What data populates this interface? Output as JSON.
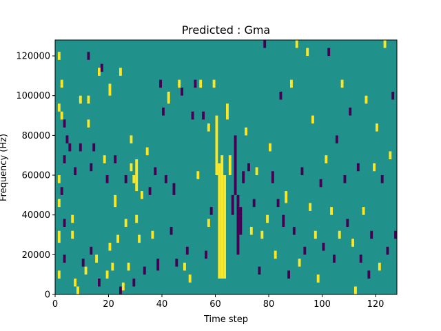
{
  "chart_data": {
    "type": "heatmap",
    "title": "Predicted : Gma",
    "xlabel": "Time step",
    "ylabel": "Frequency (Hz)",
    "xlim": [
      0,
      128
    ],
    "ylim": [
      0,
      128000
    ],
    "x_ticks": [
      0,
      20,
      40,
      60,
      80,
      100,
      120
    ],
    "y_ticks": [
      0,
      20000,
      40000,
      60000,
      80000,
      100000,
      120000
    ],
    "x_tick_labels": [
      "0",
      "20",
      "40",
      "60",
      "80",
      "100",
      "120"
    ],
    "y_tick_labels": [
      "0",
      "20000",
      "40000",
      "60000",
      "80000",
      "100000",
      "120000"
    ],
    "grid": false,
    "legend": "none",
    "colors": {
      "background": "#21918c",
      "high": "#fde725",
      "low": "#440154"
    },
    "levels": [
      "low",
      "background",
      "high"
    ],
    "cells": [
      {
        "t": 1,
        "f0": 118000,
        "f1": 122000,
        "v": "high"
      },
      {
        "t": 2,
        "f0": 104000,
        "f1": 108000,
        "v": "high"
      },
      {
        "t": 1,
        "f0": 92000,
        "f1": 96000,
        "v": "high"
      },
      {
        "t": 2,
        "f0": 88000,
        "f1": 92000,
        "v": "high"
      },
      {
        "t": 3,
        "f0": 84000,
        "f1": 88000,
        "v": "low"
      },
      {
        "t": 4,
        "f0": 76000,
        "f1": 80000,
        "v": "low"
      },
      {
        "t": 5,
        "f0": 72000,
        "f1": 76000,
        "v": "low"
      },
      {
        "t": 3,
        "f0": 66000,
        "f1": 70000,
        "v": "low"
      },
      {
        "t": 1,
        "f0": 56000,
        "f1": 60000,
        "v": "high"
      },
      {
        "t": 2,
        "f0": 50000,
        "f1": 54000,
        "v": "low"
      },
      {
        "t": 1,
        "f0": 44000,
        "f1": 48000,
        "v": "high"
      },
      {
        "t": 3,
        "f0": 34000,
        "f1": 38000,
        "v": "low"
      },
      {
        "t": 1,
        "f0": 26000,
        "f1": 32000,
        "v": "high"
      },
      {
        "t": 3,
        "f0": 16000,
        "f1": 20000,
        "v": "low"
      },
      {
        "t": 1,
        "f0": 8000,
        "f1": 12000,
        "v": "high"
      },
      {
        "t": 7,
        "f0": 4000,
        "f1": 8000,
        "v": "high"
      },
      {
        "t": 8,
        "f0": 0,
        "f1": 4000,
        "v": "high"
      },
      {
        "t": 6,
        "f0": 28000,
        "f1": 32000,
        "v": "high"
      },
      {
        "t": 6,
        "f0": 36000,
        "f1": 40000,
        "v": "high"
      },
      {
        "t": 7,
        "f0": 60000,
        "f1": 64000,
        "v": "low"
      },
      {
        "t": 9,
        "f0": 72000,
        "f1": 76000,
        "v": "low"
      },
      {
        "t": 9,
        "f0": 96000,
        "f1": 100000,
        "v": "high"
      },
      {
        "t": 12,
        "f0": 118000,
        "f1": 122000,
        "v": "low"
      },
      {
        "t": 12,
        "f0": 96000,
        "f1": 100000,
        "v": "high"
      },
      {
        "t": 12,
        "f0": 84000,
        "f1": 88000,
        "v": "high"
      },
      {
        "t": 13,
        "f0": 62000,
        "f1": 66000,
        "v": "low"
      },
      {
        "t": 10,
        "f0": 14000,
        "f1": 18000,
        "v": "low"
      },
      {
        "t": 11,
        "f0": 10000,
        "f1": 14000,
        "v": "high"
      },
      {
        "t": 13,
        "f0": 20000,
        "f1": 24000,
        "v": "low"
      },
      {
        "t": 14,
        "f0": 72000,
        "f1": 76000,
        "v": "low"
      },
      {
        "t": 15,
        "f0": 16000,
        "f1": 20000,
        "v": "high"
      },
      {
        "t": 16,
        "f0": 110000,
        "f1": 114000,
        "v": "high"
      },
      {
        "t": 16,
        "f0": 4000,
        "f1": 8000,
        "v": "low"
      },
      {
        "t": 17,
        "f0": 112000,
        "f1": 116000,
        "v": "low"
      },
      {
        "t": 18,
        "f0": 66000,
        "f1": 70000,
        "v": "high"
      },
      {
        "t": 19,
        "f0": 56000,
        "f1": 60000,
        "v": "low"
      },
      {
        "t": 19,
        "f0": 8000,
        "f1": 12000,
        "v": "high"
      },
      {
        "t": 20,
        "f0": 100000,
        "f1": 106000,
        "v": "high"
      },
      {
        "t": 20,
        "f0": 22000,
        "f1": 26000,
        "v": "high"
      },
      {
        "t": 21,
        "f0": 12000,
        "f1": 16000,
        "v": "high"
      },
      {
        "t": 22,
        "f0": 66000,
        "f1": 70000,
        "v": "low"
      },
      {
        "t": 22,
        "f0": 44000,
        "f1": 50000,
        "v": "high"
      },
      {
        "t": 23,
        "f0": 26000,
        "f1": 30000,
        "v": "high"
      },
      {
        "t": 24,
        "f0": 110000,
        "f1": 114000,
        "v": "high"
      },
      {
        "t": 24,
        "f0": 0,
        "f1": 4000,
        "v": "low"
      },
      {
        "t": 25,
        "f0": 2000,
        "f1": 6000,
        "v": "high"
      },
      {
        "t": 26,
        "f0": 56000,
        "f1": 60000,
        "v": "low"
      },
      {
        "t": 26,
        "f0": 34000,
        "f1": 38000,
        "v": "high"
      },
      {
        "t": 27,
        "f0": 12000,
        "f1": 16000,
        "v": "high"
      },
      {
        "t": 28,
        "f0": 76000,
        "f1": 80000,
        "v": "high"
      },
      {
        "t": 28,
        "f0": 62000,
        "f1": 66000,
        "v": "high"
      },
      {
        "t": 29,
        "f0": 56000,
        "f1": 60000,
        "v": "high"
      },
      {
        "t": 29,
        "f0": 4000,
        "f1": 8000,
        "v": "low"
      },
      {
        "t": 30,
        "f0": 36000,
        "f1": 40000,
        "v": "high"
      },
      {
        "t": 30,
        "f0": 52000,
        "f1": 68000,
        "v": "high"
      },
      {
        "t": 31,
        "f0": 26000,
        "f1": 30000,
        "v": "high"
      },
      {
        "t": 32,
        "f0": 48000,
        "f1": 52000,
        "v": "high"
      },
      {
        "t": 33,
        "f0": 10000,
        "f1": 14000,
        "v": "low"
      },
      {
        "t": 34,
        "f0": 70000,
        "f1": 74000,
        "v": "high"
      },
      {
        "t": 35,
        "f0": 50000,
        "f1": 54000,
        "v": "low"
      },
      {
        "t": 36,
        "f0": 28000,
        "f1": 32000,
        "v": "high"
      },
      {
        "t": 37,
        "f0": 60000,
        "f1": 64000,
        "v": "low"
      },
      {
        "t": 38,
        "f0": 12000,
        "f1": 18000,
        "v": "low"
      },
      {
        "t": 39,
        "f0": 104000,
        "f1": 108000,
        "v": "low"
      },
      {
        "t": 40,
        "f0": 90000,
        "f1": 94000,
        "v": "low"
      },
      {
        "t": 41,
        "f0": 56000,
        "f1": 60000,
        "v": "low"
      },
      {
        "t": 42,
        "f0": 96000,
        "f1": 102000,
        "v": "high"
      },
      {
        "t": 43,
        "f0": 30000,
        "f1": 34000,
        "v": "low"
      },
      {
        "t": 44,
        "f0": 50000,
        "f1": 56000,
        "v": "low"
      },
      {
        "t": 45,
        "f0": 14000,
        "f1": 18000,
        "v": "low"
      },
      {
        "t": 46,
        "f0": 104000,
        "f1": 108000,
        "v": "high"
      },
      {
        "t": 47,
        "f0": 100000,
        "f1": 104000,
        "v": "low"
      },
      {
        "t": 48,
        "f0": 12000,
        "f1": 16000,
        "v": "high"
      },
      {
        "t": 49,
        "f0": 20000,
        "f1": 24000,
        "v": "low"
      },
      {
        "t": 50,
        "f0": 6000,
        "f1": 10000,
        "v": "high"
      },
      {
        "t": 51,
        "f0": 88000,
        "f1": 92000,
        "v": "low"
      },
      {
        "t": 52,
        "f0": 104000,
        "f1": 108000,
        "v": "low"
      },
      {
        "t": 53,
        "f0": 58000,
        "f1": 62000,
        "v": "high"
      },
      {
        "t": 54,
        "f0": 104000,
        "f1": 108000,
        "v": "high"
      },
      {
        "t": 55,
        "f0": 88000,
        "f1": 92000,
        "v": "low"
      },
      {
        "t": 56,
        "f0": 18000,
        "f1": 22000,
        "v": "low"
      },
      {
        "t": 57,
        "f0": 34000,
        "f1": 38000,
        "v": "high"
      },
      {
        "t": 57,
        "f0": 82000,
        "f1": 86000,
        "v": "high"
      },
      {
        "t": 58,
        "f0": 40000,
        "f1": 44000,
        "v": "low"
      },
      {
        "t": 59,
        "f0": 104000,
        "f1": 108000,
        "v": "high"
      },
      {
        "t": 60,
        "f0": 60000,
        "f1": 90000,
        "v": "high"
      },
      {
        "t": 61,
        "f0": 8000,
        "f1": 66000,
        "v": "high"
      },
      {
        "t": 62,
        "f0": 8000,
        "f1": 70000,
        "v": "high"
      },
      {
        "t": 63,
        "f0": 8000,
        "f1": 60000,
        "v": "high"
      },
      {
        "t": 64,
        "f0": 88000,
        "f1": 96000,
        "v": "high"
      },
      {
        "t": 65,
        "f0": 60000,
        "f1": 70000,
        "v": "high"
      },
      {
        "t": 66,
        "f0": 40000,
        "f1": 50000,
        "v": "low"
      },
      {
        "t": 67,
        "f0": 50000,
        "f1": 80000,
        "v": "low"
      },
      {
        "t": 68,
        "f0": 20000,
        "f1": 50000,
        "v": "low"
      },
      {
        "t": 69,
        "f0": 30000,
        "f1": 44000,
        "v": "low"
      },
      {
        "t": 70,
        "f0": 56000,
        "f1": 62000,
        "v": "low"
      },
      {
        "t": 71,
        "f0": 80000,
        "f1": 84000,
        "v": "high"
      },
      {
        "t": 72,
        "f0": 62000,
        "f1": 66000,
        "v": "low"
      },
      {
        "t": 73,
        "f0": 30000,
        "f1": 34000,
        "v": "high"
      },
      {
        "t": 74,
        "f0": 44000,
        "f1": 48000,
        "v": "low"
      },
      {
        "t": 75,
        "f0": 60000,
        "f1": 64000,
        "v": "high"
      },
      {
        "t": 76,
        "f0": 10000,
        "f1": 14000,
        "v": "low"
      },
      {
        "t": 77,
        "f0": 28000,
        "f1": 32000,
        "v": "high"
      },
      {
        "t": 78,
        "f0": 124000,
        "f1": 128000,
        "v": "low"
      },
      {
        "t": 79,
        "f0": 36000,
        "f1": 40000,
        "v": "high"
      },
      {
        "t": 80,
        "f0": 72000,
        "f1": 76000,
        "v": "high"
      },
      {
        "t": 81,
        "f0": 56000,
        "f1": 62000,
        "v": "low"
      },
      {
        "t": 82,
        "f0": 18000,
        "f1": 22000,
        "v": "high"
      },
      {
        "t": 83,
        "f0": 44000,
        "f1": 48000,
        "v": "low"
      },
      {
        "t": 84,
        "f0": 98000,
        "f1": 102000,
        "v": "low"
      },
      {
        "t": 85,
        "f0": 34000,
        "f1": 40000,
        "v": "low"
      },
      {
        "t": 86,
        "f0": 46000,
        "f1": 52000,
        "v": "high"
      },
      {
        "t": 87,
        "f0": 8000,
        "f1": 12000,
        "v": "low"
      },
      {
        "t": 88,
        "f0": 104000,
        "f1": 108000,
        "v": "high"
      },
      {
        "t": 89,
        "f0": 30000,
        "f1": 34000,
        "v": "low"
      },
      {
        "t": 90,
        "f0": 124000,
        "f1": 128000,
        "v": "high"
      },
      {
        "t": 91,
        "f0": 14000,
        "f1": 18000,
        "v": "high"
      },
      {
        "t": 92,
        "f0": 60000,
        "f1": 64000,
        "v": "low"
      },
      {
        "t": 93,
        "f0": 20000,
        "f1": 24000,
        "v": "low"
      },
      {
        "t": 94,
        "f0": 120000,
        "f1": 124000,
        "v": "high"
      },
      {
        "t": 95,
        "f0": 42000,
        "f1": 46000,
        "v": "high"
      },
      {
        "t": 96,
        "f0": 86000,
        "f1": 90000,
        "v": "high"
      },
      {
        "t": 97,
        "f0": 28000,
        "f1": 32000,
        "v": "high"
      },
      {
        "t": 98,
        "f0": 6000,
        "f1": 10000,
        "v": "high"
      },
      {
        "t": 99,
        "f0": 54000,
        "f1": 58000,
        "v": "low"
      },
      {
        "t": 100,
        "f0": 22000,
        "f1": 26000,
        "v": "low"
      },
      {
        "t": 101,
        "f0": 66000,
        "f1": 70000,
        "v": "high"
      },
      {
        "t": 102,
        "f0": 120000,
        "f1": 124000,
        "v": "low"
      },
      {
        "t": 103,
        "f0": 40000,
        "f1": 44000,
        "v": "high"
      },
      {
        "t": 104,
        "f0": 16000,
        "f1": 20000,
        "v": "low"
      },
      {
        "t": 105,
        "f0": 76000,
        "f1": 80000,
        "v": "low"
      },
      {
        "t": 106,
        "f0": 28000,
        "f1": 32000,
        "v": "high"
      },
      {
        "t": 107,
        "f0": 104000,
        "f1": 108000,
        "v": "high"
      },
      {
        "t": 108,
        "f0": 56000,
        "f1": 60000,
        "v": "low"
      },
      {
        "t": 109,
        "f0": 34000,
        "f1": 38000,
        "v": "low"
      },
      {
        "t": 110,
        "f0": 90000,
        "f1": 94000,
        "v": "low"
      },
      {
        "t": 111,
        "f0": 24000,
        "f1": 28000,
        "v": "high"
      },
      {
        "t": 112,
        "f0": 0,
        "f1": 4000,
        "v": "high"
      },
      {
        "t": 113,
        "f0": 62000,
        "f1": 66000,
        "v": "low"
      },
      {
        "t": 114,
        "f0": 16000,
        "f1": 20000,
        "v": "low"
      },
      {
        "t": 115,
        "f0": 40000,
        "f1": 44000,
        "v": "high"
      },
      {
        "t": 116,
        "f0": 96000,
        "f1": 100000,
        "v": "high"
      },
      {
        "t": 117,
        "f0": 8000,
        "f1": 12000,
        "v": "low"
      },
      {
        "t": 118,
        "f0": 28000,
        "f1": 32000,
        "v": "low"
      },
      {
        "t": 119,
        "f0": 62000,
        "f1": 66000,
        "v": "high"
      },
      {
        "t": 120,
        "f0": 82000,
        "f1": 86000,
        "v": "high"
      },
      {
        "t": 121,
        "f0": 12000,
        "f1": 16000,
        "v": "high"
      },
      {
        "t": 122,
        "f0": 56000,
        "f1": 60000,
        "v": "low"
      },
      {
        "t": 123,
        "f0": 124000,
        "f1": 128000,
        "v": "high"
      },
      {
        "t": 124,
        "f0": 20000,
        "f1": 24000,
        "v": "low"
      },
      {
        "t": 125,
        "f0": 68000,
        "f1": 72000,
        "v": "high"
      },
      {
        "t": 126,
        "f0": 98000,
        "f1": 102000,
        "v": "low"
      },
      {
        "t": 127,
        "f0": 28000,
        "f1": 32000,
        "v": "low"
      }
    ]
  }
}
